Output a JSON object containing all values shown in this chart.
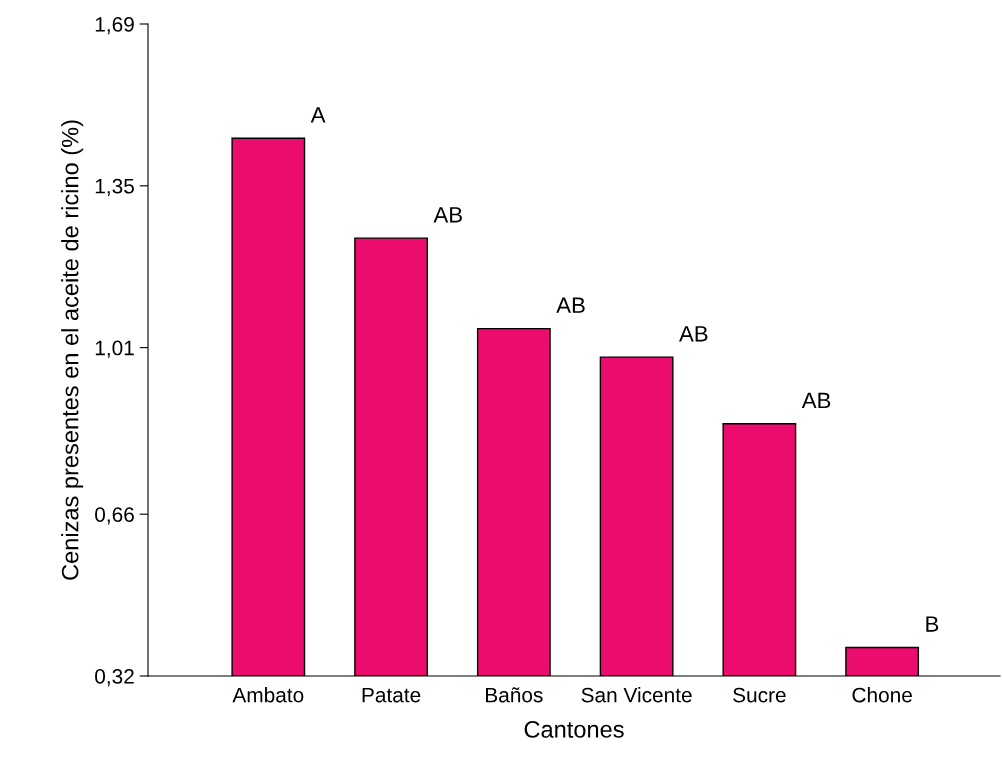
{
  "chart_data": {
    "type": "bar",
    "xlabel": "Cantones",
    "ylabel": "Cenizas presentes en el aceite de ricino (%)",
    "categories": [
      "Ambato",
      "Patate",
      "Baños",
      "San Vicente",
      "Sucre",
      "Chone"
    ],
    "values": [
      1.45,
      1.24,
      1.05,
      0.99,
      0.85,
      0.38
    ],
    "color": "#ec0c6e",
    "ylim": [
      0.32,
      1.69
    ],
    "yticks": [
      {
        "value": 0.32,
        "label": "0,32"
      },
      {
        "value": 0.66,
        "label": "0,66"
      },
      {
        "value": 1.01,
        "label": "1,01"
      },
      {
        "value": 1.35,
        "label": "1,35"
      },
      {
        "value": 1.69,
        "label": "1,69"
      }
    ],
    "grid": false,
    "legend": false,
    "annotations": [
      {
        "text": "A",
        "x": "Ambato",
        "y": 1.45
      },
      {
        "text": "AB",
        "x": "Patate",
        "y": 1.24
      },
      {
        "text": "AB",
        "x": "Baños",
        "y": 1.05
      },
      {
        "text": "AB",
        "x": "San Vicente",
        "y": 0.99
      },
      {
        "text": "AB",
        "x": "Sucre",
        "y": 0.85
      },
      {
        "text": "B",
        "x": "Chone",
        "y": 0.38
      }
    ]
  }
}
